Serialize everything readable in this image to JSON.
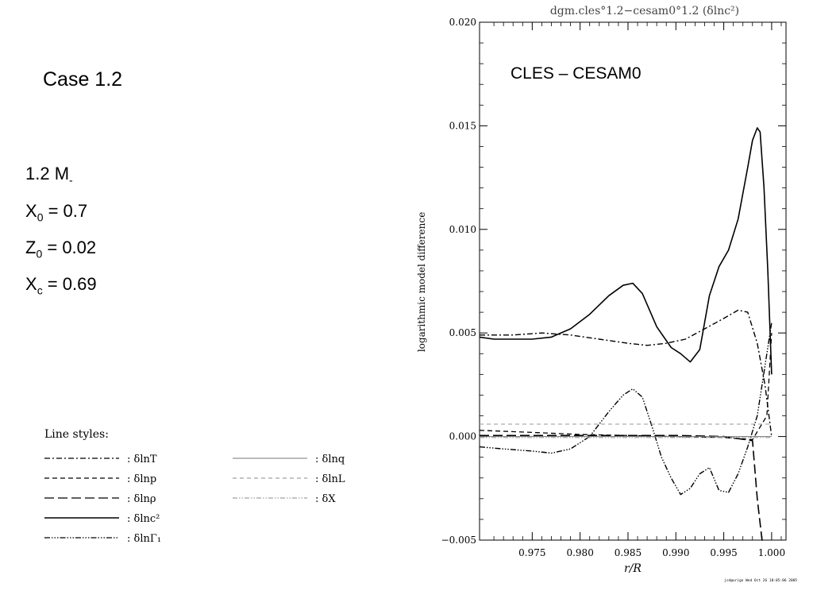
{
  "left_panel": {
    "case_title": "Case 1.2",
    "mass_text": "1.2 M",
    "mass_suffix": "-",
    "x0": {
      "sym": "X",
      "sub": "0",
      "val": " = 0.7"
    },
    "z0": {
      "sym": "Z",
      "sub": "0",
      "val": " = 0.02"
    },
    "xc": {
      "sym": "X",
      "sub": "c",
      "val": " = 0.69"
    }
  },
  "legend": {
    "title": "Line styles:",
    "items": [
      {
        "label": ": δlnT",
        "style": "dashdot"
      },
      {
        "label": ": δlnp",
        "style": "shortdash"
      },
      {
        "label": ": δlnρ",
        "style": "longdash"
      },
      {
        "label": ": δlnc²",
        "style": "solid"
      },
      {
        "label": ": δlnΓ₁",
        "style": "dashdotdotdot"
      },
      {
        "label": ": δlnq",
        "style": "thinsolid"
      },
      {
        "label": ": δlnL",
        "style": "thindash"
      },
      {
        "label": ": δX",
        "style": "thindashdot"
      }
    ]
  },
  "chart_data": {
    "type": "line",
    "title": "dgm.cles°1.2−cesam0°1.2  (δlnc²)",
    "annotation": "CLES – CESAM0",
    "xlabel": "r/R",
    "ylabel": "logarithmic model difference",
    "xlim": [
      0.9695,
      1.0015
    ],
    "ylim": [
      -0.005,
      0.02
    ],
    "x_ticks": [
      "0.975",
      "0.980",
      "0.985",
      "0.990",
      "0.995",
      "1.000"
    ],
    "x_tick_values": [
      0.975,
      0.98,
      0.985,
      0.99,
      0.995,
      1.0
    ],
    "y_ticks": [
      "−0.005",
      "0.000",
      "0.005",
      "0.010",
      "0.015",
      "0.020"
    ],
    "y_tick_values": [
      -0.005,
      0.0,
      0.005,
      0.01,
      0.015,
      0.02
    ],
    "series": [
      {
        "style": "solid",
        "x": [
          0.9695,
          0.971,
          0.973,
          0.975,
          0.977,
          0.979,
          0.981,
          0.983,
          0.9845,
          0.9855,
          0.9865,
          0.988,
          0.9895,
          0.9905,
          0.9915,
          0.9925,
          0.9935,
          0.9945,
          0.9955,
          0.9965,
          0.9975,
          0.998,
          0.9985,
          0.9988,
          0.9992,
          0.9996,
          1.0
        ],
        "y": [
          0.0048,
          0.0047,
          0.0047,
          0.0047,
          0.0048,
          0.0052,
          0.0059,
          0.0068,
          0.0073,
          0.0074,
          0.0069,
          0.0053,
          0.0043,
          0.004,
          0.0036,
          0.0042,
          0.0068,
          0.0082,
          0.009,
          0.0105,
          0.013,
          0.0143,
          0.0149,
          0.0147,
          0.012,
          0.008,
          0.003
        ]
      },
      {
        "style": "dashdot",
        "x": [
          0.9695,
          0.973,
          0.976,
          0.979,
          0.982,
          0.985,
          0.987,
          0.989,
          0.991,
          0.993,
          0.995,
          0.9965,
          0.9975,
          0.9985,
          0.9993,
          1.0
        ],
        "y": [
          0.0049,
          0.0049,
          0.005,
          0.0049,
          0.0047,
          0.0045,
          0.0044,
          0.0045,
          0.0047,
          0.0052,
          0.0057,
          0.0061,
          0.006,
          0.0045,
          0.0025,
          0.0
        ],
        "name": ""
      },
      {
        "style": "dashdotdotdot",
        "x": [
          0.9695,
          0.972,
          0.975,
          0.977,
          0.979,
          0.981,
          0.983,
          0.9845,
          0.9855,
          0.9865,
          0.9875,
          0.9885,
          0.9895,
          0.9905,
          0.9915,
          0.9925,
          0.9935,
          0.9945,
          0.9955,
          0.9965,
          0.9975,
          0.9985,
          0.9995,
          1.0
        ],
        "y": [
          -0.0005,
          -0.0006,
          -0.0007,
          -0.0008,
          -0.0006,
          0.0,
          0.0012,
          0.002,
          0.0023,
          0.0019,
          0.0005,
          -0.001,
          -0.002,
          -0.0028,
          -0.0025,
          -0.0018,
          -0.0015,
          -0.0026,
          -0.0027,
          -0.0018,
          -0.0005,
          0.001,
          0.004,
          0.0055
        ]
      },
      {
        "style": "shortdash",
        "x": [
          0.9695,
          0.975,
          0.98,
          0.985,
          0.99,
          0.995,
          0.998,
          0.9995,
          1.0
        ],
        "y": [
          0.0003,
          0.0002,
          0.0001,
          5e-05,
          0.0,
          -5e-05,
          -0.00015,
          0.001,
          0.005
        ]
      },
      {
        "style": "longdash",
        "x": [
          0.9695,
          0.975,
          0.98,
          0.985,
          0.99,
          0.995,
          0.998,
          0.9985,
          0.999,
          0.9993
        ],
        "y": [
          5e-05,
          5e-05,
          5e-05,
          5e-05,
          5e-05,
          0.0,
          -0.0002,
          -0.003,
          -0.0052,
          -0.0055
        ]
      },
      {
        "style": "thinsolid",
        "x": [
          0.9695,
          1.0
        ],
        "y": [
          0.0,
          0.0
        ]
      },
      {
        "style": "thindash",
        "x": [
          0.9695,
          1.0
        ],
        "y": [
          0.0006,
          0.0006
        ]
      },
      {
        "style": "thindashdot",
        "x": [
          0.9695,
          1.0
        ],
        "y": [
          -5e-05,
          -5e-05
        ]
      }
    ]
  },
  "footer": "jcd@urigo Wed Oct 26 18:05:06 2005"
}
